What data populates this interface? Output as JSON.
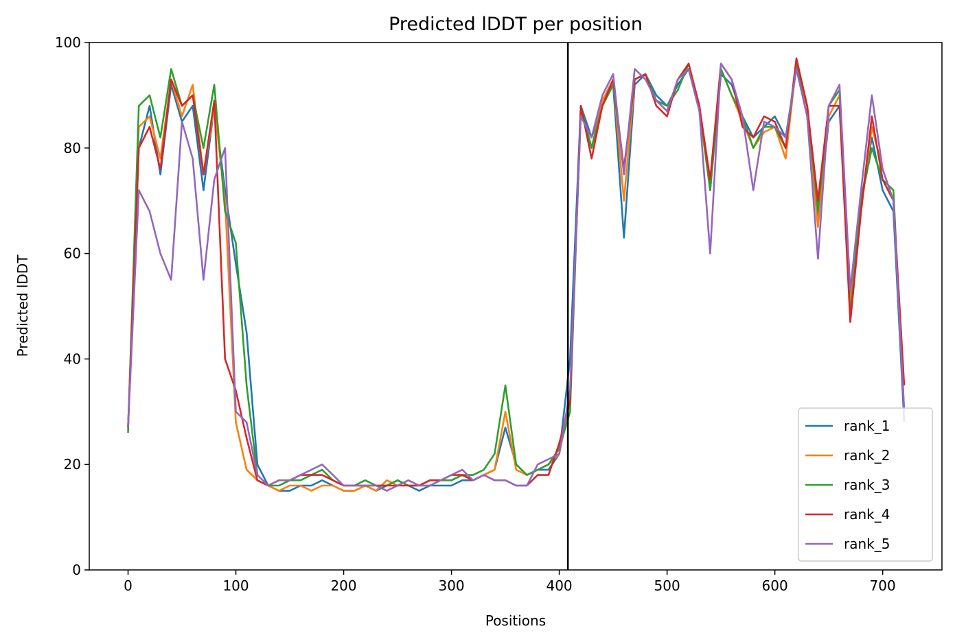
{
  "chart_data": {
    "type": "line",
    "title": "Predicted lDDT per position",
    "xlabel": "Positions",
    "ylabel": "Predicted lDDT",
    "x": [
      0,
      10,
      20,
      30,
      40,
      50,
      60,
      70,
      80,
      90,
      100,
      110,
      120,
      130,
      140,
      150,
      160,
      170,
      180,
      190,
      200,
      210,
      220,
      230,
      240,
      250,
      260,
      270,
      280,
      290,
      300,
      310,
      320,
      330,
      340,
      350,
      360,
      370,
      380,
      390,
      400,
      410,
      420,
      430,
      440,
      450,
      460,
      470,
      480,
      490,
      500,
      510,
      520,
      530,
      540,
      550,
      560,
      570,
      580,
      590,
      600,
      610,
      620,
      630,
      640,
      650,
      660,
      670,
      680,
      690,
      700,
      710,
      720
    ],
    "series": [
      {
        "name": "rank_1",
        "color": "#1f77b4",
        "values": [
          27,
          80,
          88,
          75,
          92,
          85,
          88,
          72,
          88,
          72,
          58,
          45,
          20,
          16,
          15,
          15,
          16,
          16,
          17,
          16,
          15,
          15,
          16,
          15,
          16,
          17,
          16,
          15,
          16,
          16,
          16,
          17,
          17,
          18,
          19,
          27,
          20,
          18,
          19,
          19,
          22,
          40,
          88,
          82,
          88,
          92,
          63,
          92,
          94,
          90,
          88,
          92,
          95,
          88,
          72,
          94,
          92,
          86,
          82,
          84,
          86,
          82,
          95,
          88,
          66,
          85,
          88,
          52,
          70,
          82,
          72,
          68,
          28
        ]
      },
      {
        "name": "rank_2",
        "color": "#ff7f0e",
        "values": [
          27,
          84,
          86,
          78,
          93,
          86,
          92,
          75,
          88,
          70,
          28,
          19,
          17,
          16,
          15,
          16,
          16,
          15,
          16,
          16,
          15,
          15,
          16,
          15,
          17,
          16,
          17,
          16,
          16,
          17,
          17,
          18,
          17,
          18,
          19,
          30,
          19,
          18,
          19,
          20,
          22,
          32,
          87,
          80,
          89,
          93,
          70,
          93,
          94,
          89,
          87,
          93,
          95,
          87,
          72,
          95,
          90,
          85,
          80,
          83,
          84,
          78,
          96,
          86,
          65,
          86,
          90,
          50,
          68,
          84,
          76,
          70,
          30
        ]
      },
      {
        "name": "rank_3",
        "color": "#2ca02c",
        "values": [
          26,
          88,
          90,
          82,
          95,
          88,
          90,
          80,
          92,
          68,
          62,
          35,
          18,
          16,
          16,
          17,
          17,
          18,
          19,
          17,
          16,
          16,
          17,
          16,
          16,
          17,
          16,
          16,
          17,
          17,
          17,
          18,
          18,
          19,
          22,
          35,
          20,
          18,
          19,
          20,
          23,
          30,
          88,
          80,
          88,
          92,
          76,
          93,
          94,
          89,
          88,
          91,
          96,
          88,
          72,
          95,
          90,
          86,
          80,
          84,
          84,
          80,
          96,
          88,
          68,
          88,
          91,
          48,
          70,
          80,
          74,
          72,
          30
        ]
      },
      {
        "name": "rank_4",
        "color": "#d62728",
        "values": [
          27,
          80,
          84,
          76,
          93,
          88,
          90,
          75,
          89,
          40,
          34,
          25,
          17,
          16,
          17,
          17,
          18,
          18,
          18,
          17,
          16,
          16,
          16,
          16,
          16,
          16,
          16,
          16,
          17,
          17,
          18,
          18,
          17,
          18,
          17,
          17,
          16,
          16,
          18,
          18,
          24,
          32,
          88,
          78,
          88,
          93,
          76,
          93,
          94,
          88,
          86,
          93,
          96,
          88,
          74,
          96,
          93,
          84,
          82,
          86,
          85,
          80,
          97,
          88,
          70,
          88,
          88,
          47,
          68,
          86,
          74,
          70,
          35
        ]
      },
      {
        "name": "rank_5",
        "color": "#9467bd",
        "values": [
          27,
          72,
          68,
          60,
          55,
          85,
          78,
          55,
          74,
          80,
          30,
          28,
          18,
          16,
          17,
          17,
          18,
          19,
          20,
          18,
          16,
          16,
          16,
          16,
          15,
          16,
          17,
          16,
          16,
          17,
          18,
          19,
          17,
          18,
          17,
          17,
          16,
          16,
          20,
          21,
          22,
          34,
          86,
          82,
          90,
          94,
          75,
          95,
          93,
          89,
          87,
          93,
          95,
          87,
          60,
          96,
          93,
          86,
          72,
          85,
          84,
          82,
          95,
          86,
          59,
          88,
          92,
          53,
          72,
          90,
          76,
          70,
          30
        ]
      }
    ],
    "vline": 408,
    "xlim": [
      -36,
      755
    ],
    "xticks": [
      0,
      100,
      200,
      300,
      400,
      500,
      600,
      700
    ],
    "ylim": [
      0,
      100
    ],
    "yticks": [
      0,
      20,
      40,
      60,
      80,
      100
    ],
    "legend": "lower right"
  }
}
